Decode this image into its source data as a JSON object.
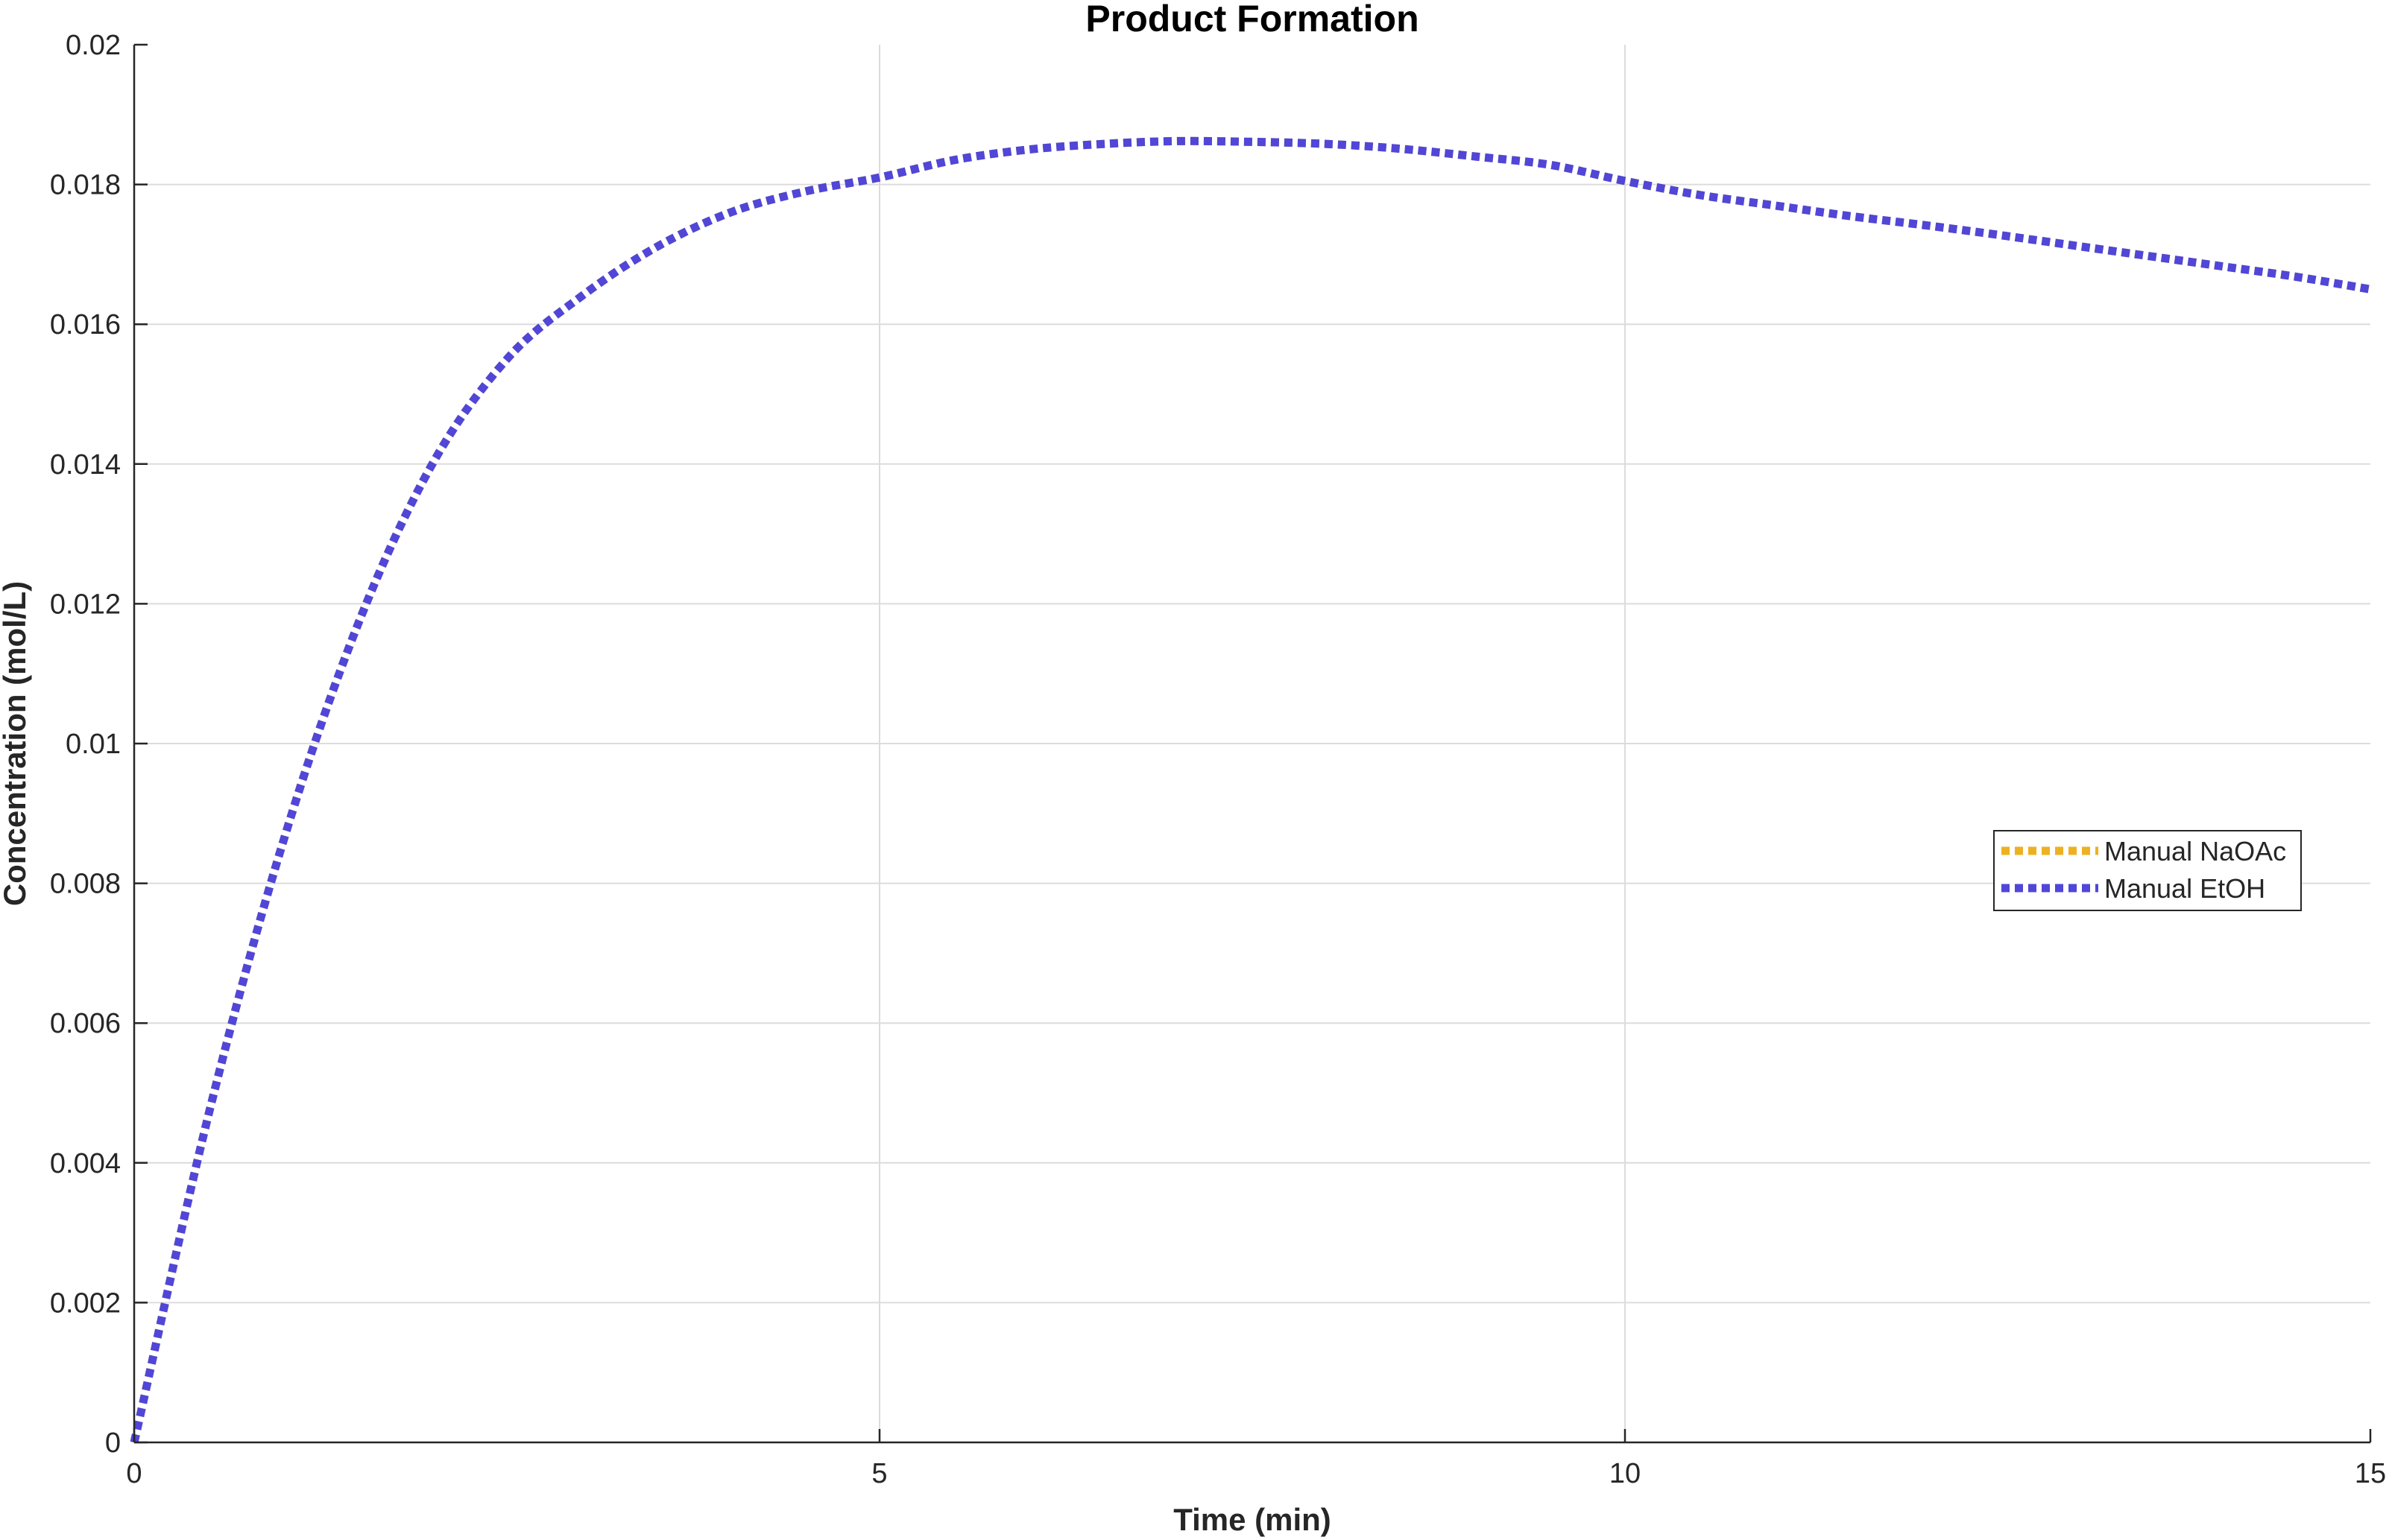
{
  "chart_data": {
    "type": "line",
    "title": "Product Formation",
    "xlabel": "Time (min)",
    "ylabel": "Concentration (mol/L)",
    "xlim": [
      0,
      15
    ],
    "ylim": [
      0,
      0.02
    ],
    "x_ticks": [
      0,
      5,
      10,
      15
    ],
    "x_tick_labels": [
      "0",
      "5",
      "10",
      "15"
    ],
    "y_ticks": [
      0,
      0.002,
      0.004,
      0.006,
      0.008,
      0.01,
      0.012,
      0.014,
      0.016,
      0.018,
      0.02
    ],
    "y_tick_labels": [
      "0",
      "0.002",
      "0.004",
      "0.006",
      "0.008",
      "0.01",
      "0.012",
      "0.014",
      "0.016",
      "0.018",
      "0.02"
    ],
    "grid": true,
    "legend_position": "right",
    "series": [
      {
        "name": "Manual NaOAc",
        "color": "#EDB120",
        "line_style": "dotted",
        "x": [
          0,
          0.5,
          1,
          1.5,
          2,
          2.5,
          3,
          3.5,
          4,
          4.5,
          5,
          5.5,
          6,
          6.5,
          7,
          7.5,
          8,
          8.5,
          9,
          9.5,
          10,
          10.5,
          11,
          11.5,
          12,
          12.5,
          13,
          13.5,
          14,
          14.5,
          15
        ],
        "y": [
          0,
          0.0047,
          0.0086,
          0.0117,
          0.014,
          0.0155,
          0.0164,
          0.0171,
          0.0176,
          0.0179,
          0.0181,
          0.01835,
          0.0185,
          0.01858,
          0.01862,
          0.01861,
          0.01858,
          0.01851,
          0.0184,
          0.01828,
          0.01805,
          0.01785,
          0.0177,
          0.01755,
          0.01742,
          0.01728,
          0.01713,
          0.01698,
          0.01683,
          0.01668,
          0.0165
        ]
      },
      {
        "name": "Manual EtOH",
        "color": "#5046D8",
        "line_style": "dotted",
        "x": [
          0,
          0.5,
          1,
          1.5,
          2,
          2.5,
          3,
          3.5,
          4,
          4.5,
          5,
          5.5,
          6,
          6.5,
          7,
          7.5,
          8,
          8.5,
          9,
          9.5,
          10,
          10.5,
          11,
          11.5,
          12,
          12.5,
          13,
          13.5,
          14,
          14.5,
          15
        ],
        "y": [
          0,
          0.0047,
          0.0086,
          0.0117,
          0.014,
          0.0155,
          0.0164,
          0.0171,
          0.0176,
          0.0179,
          0.0181,
          0.01835,
          0.0185,
          0.01858,
          0.01862,
          0.01861,
          0.01858,
          0.01851,
          0.0184,
          0.01828,
          0.01805,
          0.01785,
          0.0177,
          0.01755,
          0.01742,
          0.01728,
          0.01713,
          0.01698,
          0.01683,
          0.01668,
          0.0165
        ]
      }
    ]
  }
}
